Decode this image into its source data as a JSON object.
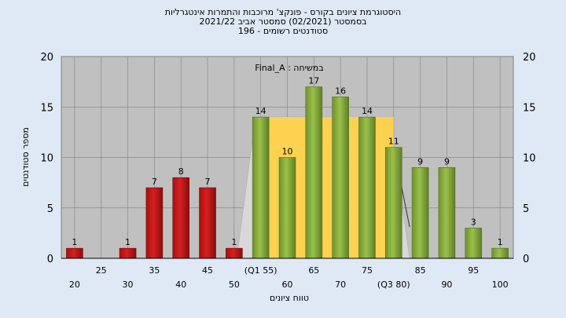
{
  "chart_data": {
    "type": "bar",
    "title_lines": [
      "היסטוגרמת ציונים בקורס - פונקצ' מרוכבות והתמרות אינטגרליות",
      "בסמסטר  (02/2021)  סמסטר אביב 2021/22",
      "סטודנטים רשומים - 196"
    ],
    "subtitle": "במשיחה : Final_A",
    "xlabel": "טווח ציונים",
    "ylabel": "מספר סטודנטים",
    "ylim": [
      0,
      20
    ],
    "yticks": [
      0,
      5,
      10,
      15,
      20
    ],
    "xticks_upper": [
      "25",
      "35",
      "45",
      "(Q1 55)",
      "65",
      "75",
      "85",
      "95"
    ],
    "xticks_lower": [
      "20",
      "30",
      "40",
      "50",
      "60",
      "70",
      "(Q3 80)",
      "90",
      "100"
    ],
    "bars": [
      {
        "category": "20",
        "value": 1,
        "group": "fail"
      },
      {
        "category": "25",
        "value": 0,
        "group": "fail"
      },
      {
        "category": "30",
        "value": 1,
        "group": "fail"
      },
      {
        "category": "35",
        "value": 7,
        "group": "fail"
      },
      {
        "category": "40",
        "value": 8,
        "group": "fail"
      },
      {
        "category": "45",
        "value": 7,
        "group": "fail"
      },
      {
        "category": "50",
        "value": 1,
        "group": "fail"
      },
      {
        "category": "55",
        "value": 14,
        "group": "pass"
      },
      {
        "category": "60",
        "value": 10,
        "group": "pass"
      },
      {
        "category": "65",
        "value": 17,
        "group": "pass"
      },
      {
        "category": "70",
        "value": 16,
        "group": "pass"
      },
      {
        "category": "75",
        "value": 14,
        "group": "pass"
      },
      {
        "category": "80",
        "value": 11,
        "group": "pass"
      },
      {
        "category": "85",
        "value": 9,
        "group": "pass"
      },
      {
        "category": "90",
        "value": 9,
        "group": "pass"
      },
      {
        "category": "95",
        "value": 3,
        "group": "pass"
      },
      {
        "category": "100",
        "value": 1,
        "group": "pass"
      }
    ],
    "iqr_band": {
      "from": "55",
      "to": "80",
      "level": 14
    },
    "grid": true,
    "colors": {
      "fail": "#d42020",
      "pass": "#9ac04a",
      "iqr": "#ffd24a",
      "plot_bg": "#c0c0c0",
      "page_bg": "#dfe9f5"
    }
  }
}
